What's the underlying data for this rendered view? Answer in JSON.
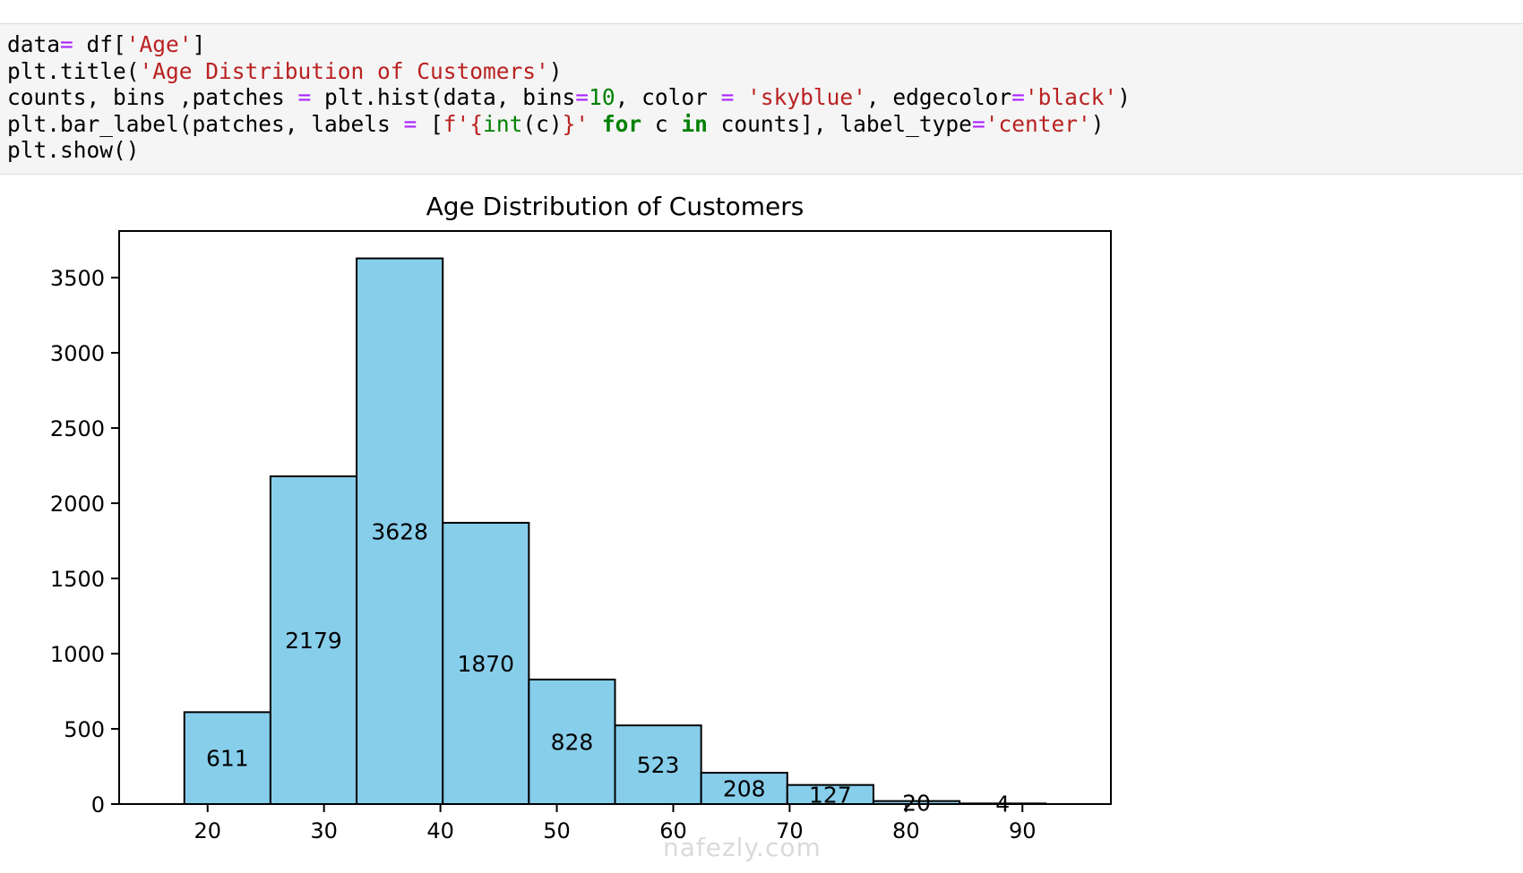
{
  "code_cell": {
    "lines": [
      [
        {
          "t": "data",
          "c": ""
        },
        {
          "t": "=",
          "c": "op"
        },
        {
          "t": " df[",
          "c": ""
        },
        {
          "t": "'Age'",
          "c": "str"
        },
        {
          "t": "]",
          "c": ""
        }
      ],
      [
        {
          "t": "plt.title(",
          "c": ""
        },
        {
          "t": "'Age Distribution of Customers'",
          "c": "str"
        },
        {
          "t": ")",
          "c": ""
        }
      ],
      [
        {
          "t": "counts, bins ,patches ",
          "c": ""
        },
        {
          "t": "=",
          "c": "op"
        },
        {
          "t": " plt.hist(data, bins",
          "c": ""
        },
        {
          "t": "=",
          "c": "op"
        },
        {
          "t": "10",
          "c": "num"
        },
        {
          "t": ", color ",
          "c": ""
        },
        {
          "t": "=",
          "c": "op"
        },
        {
          "t": " ",
          "c": ""
        },
        {
          "t": "'skyblue'",
          "c": "str"
        },
        {
          "t": ", edgecolor",
          "c": ""
        },
        {
          "t": "=",
          "c": "op"
        },
        {
          "t": "'black'",
          "c": "str"
        },
        {
          "t": ")",
          "c": ""
        }
      ],
      [
        {
          "t": "plt.bar_label(patches, labels ",
          "c": ""
        },
        {
          "t": "=",
          "c": "op"
        },
        {
          "t": " [",
          "c": ""
        },
        {
          "t": "f'{",
          "c": "str"
        },
        {
          "t": "int",
          "c": "bi"
        },
        {
          "t": "(c)",
          "c": ""
        },
        {
          "t": "}'",
          "c": "str"
        },
        {
          "t": " ",
          "c": ""
        },
        {
          "t": "for",
          "c": "kw"
        },
        {
          "t": " c ",
          "c": ""
        },
        {
          "t": "in",
          "c": "kw"
        },
        {
          "t": " counts], label_type",
          "c": ""
        },
        {
          "t": "=",
          "c": "op"
        },
        {
          "t": "'center'",
          "c": "str"
        },
        {
          "t": ")",
          "c": ""
        }
      ],
      [
        {
          "t": "plt.show()",
          "c": ""
        }
      ]
    ]
  },
  "chart_data": {
    "type": "bar",
    "title": "Age Distribution of Customers",
    "xlabel": "",
    "ylabel": "",
    "bin_edges": [
      18,
      25.4,
      32.8,
      40.2,
      47.6,
      55,
      62.4,
      69.8,
      77.2,
      84.6,
      92
    ],
    "values": [
      611,
      2179,
      3628,
      1870,
      828,
      523,
      208,
      127,
      20,
      4
    ],
    "labels": [
      "611",
      "2179",
      "3628",
      "1870",
      "828",
      "523",
      "208",
      "127",
      "20",
      "4"
    ],
    "xlim": [
      12.4,
      97.6
    ],
    "ylim": [
      0,
      3810
    ],
    "xticks": [
      20,
      30,
      40,
      50,
      60,
      70,
      80,
      90
    ],
    "yticks": [
      0,
      500,
      1000,
      1500,
      2000,
      2500,
      3000,
      3500
    ],
    "bar_color": "#87ceeb",
    "edge_color": "#000000",
    "grid": false,
    "legend": "none"
  },
  "watermark": {
    "text": "nafezly.com"
  }
}
